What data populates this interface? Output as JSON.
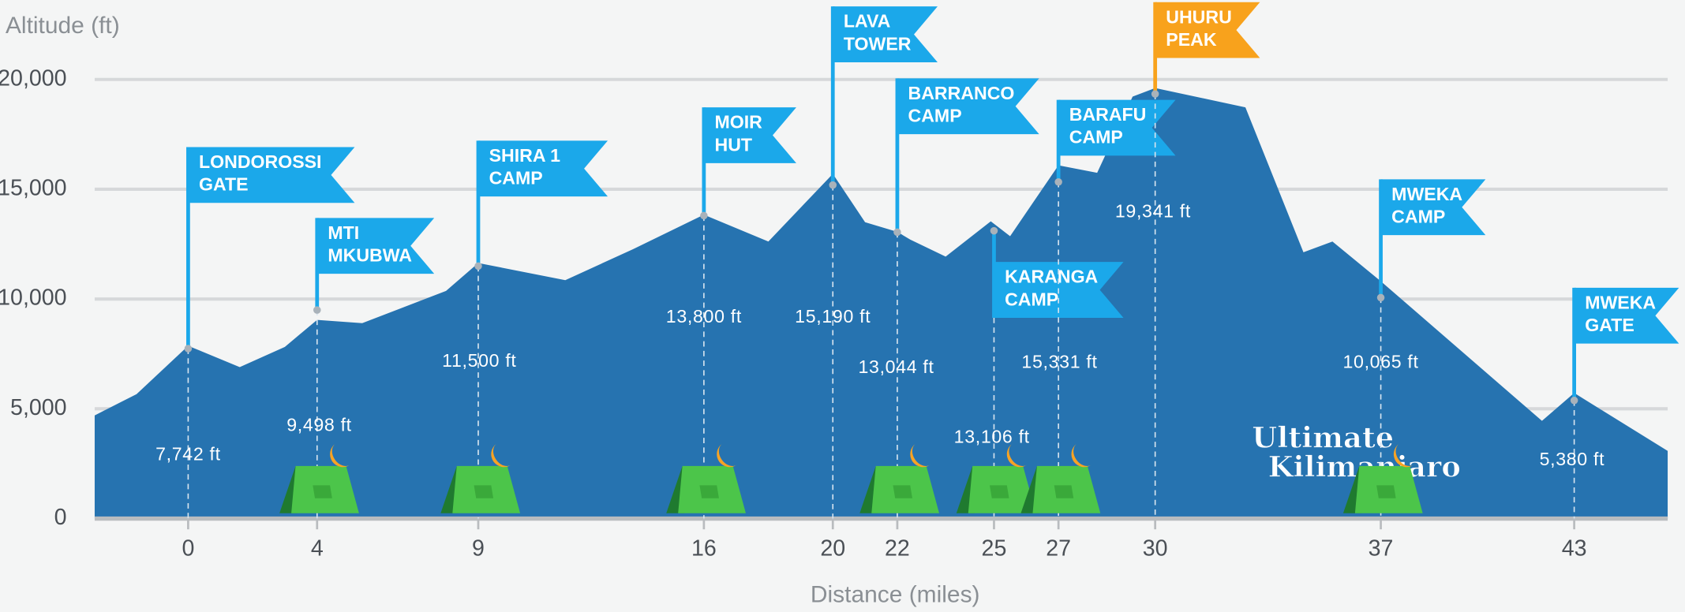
{
  "chart_data": {
    "type": "area",
    "xlabel": "Distance (miles)",
    "ylabel": "Altitude (ft)",
    "color": "#2673b0",
    "grid": true,
    "xlim": [
      -2.9,
      45.9
    ],
    "ylim": [
      0,
      20000
    ],
    "xticks": [
      0,
      4,
      9,
      16,
      20,
      22,
      25,
      27,
      30,
      37,
      43
    ],
    "yticks": [
      0,
      {
        "value": 5000,
        "label": "5,000"
      },
      {
        "value": 10000,
        "label": "10,000"
      },
      {
        "value": 15000,
        "label": "15,000"
      },
      {
        "value": 20000,
        "label": "20,000"
      }
    ],
    "x": [
      -2.9,
      -1.6,
      0,
      1.6,
      3,
      4,
      5.4,
      8,
      9,
      11.7,
      13.8,
      16,
      18,
      20,
      21,
      22,
      22.4,
      23.5,
      24.9,
      25.5,
      26,
      27,
      28.2,
      29.3,
      30,
      32.8,
      34.6,
      35.5,
      37,
      42,
      43,
      45.9
    ],
    "values": [
      4700,
      5670,
      7870,
      6900,
      7820,
      9050,
      8900,
      10370,
      11640,
      10860,
      12270,
      13840,
      12620,
      15700,
      13500,
      13060,
      12710,
      11930,
      13540,
      12860,
      13940,
      16090,
      15750,
      19220,
      19610,
      18730,
      12130,
      12620,
      10810,
      4450,
      5720,
      3080
    ],
    "annotations": [
      {
        "label": [
          "LONDOROSSI",
          "GATE"
        ],
        "x": 0,
        "altitude": {
          "value": 7742,
          "label": "7,742 ft"
        },
        "color": "#1ba8ea"
      },
      {
        "label": [
          "MTI",
          "MKUBWA"
        ],
        "x": 4,
        "altitude": {
          "value": 9498,
          "label": "9,498 ft"
        },
        "color": "#1ba8ea"
      },
      {
        "label": [
          "SHIRA 1",
          "CAMP"
        ],
        "x": 9,
        "altitude": {
          "value": 11500,
          "label": "11,500 ft"
        },
        "color": "#1ba8ea"
      },
      {
        "label": [
          "MOIR",
          "HUT"
        ],
        "x": 16,
        "altitude": {
          "value": 13800,
          "label": "13,800 ft"
        },
        "color": "#1ba8ea"
      },
      {
        "label": [
          "LAVA",
          "TOWER"
        ],
        "x": 20,
        "altitude": {
          "value": 15190,
          "label": "15,190 ft"
        },
        "color": "#1ba8ea"
      },
      {
        "label": [
          "BARRANCO",
          "CAMP"
        ],
        "x": 22,
        "altitude": {
          "value": 13044,
          "label": "13,044 ft"
        },
        "color": "#1ba8ea"
      },
      {
        "label": [
          "KARANGA",
          "CAMP"
        ],
        "x": 25,
        "altitude": {
          "value": 13106,
          "label": "13,106 ft"
        },
        "color": "#1ba8ea"
      },
      {
        "label": [
          "BARAFU",
          "CAMP"
        ],
        "x": 27,
        "altitude": {
          "value": 15331,
          "label": "15,331 ft"
        },
        "color": "#1ba8ea"
      },
      {
        "label": [
          "UHURU",
          "PEAK"
        ],
        "x": 30,
        "altitude": {
          "value": 19341,
          "label": "19,341 ft"
        },
        "color": "#f8a21c"
      },
      {
        "label": [
          "MWEKA",
          "CAMP"
        ],
        "x": 37,
        "altitude": {
          "value": 10065,
          "label": "10,065 ft"
        },
        "color": "#1ba8ea"
      },
      {
        "label": [
          "MWEKA",
          "GATE"
        ],
        "x": 43,
        "altitude": {
          "value": 5380,
          "label": "5,380 ft"
        },
        "color": "#1ba8ea"
      }
    ],
    "logo": [
      "Ultimate",
      "Kilimanjaro"
    ]
  }
}
